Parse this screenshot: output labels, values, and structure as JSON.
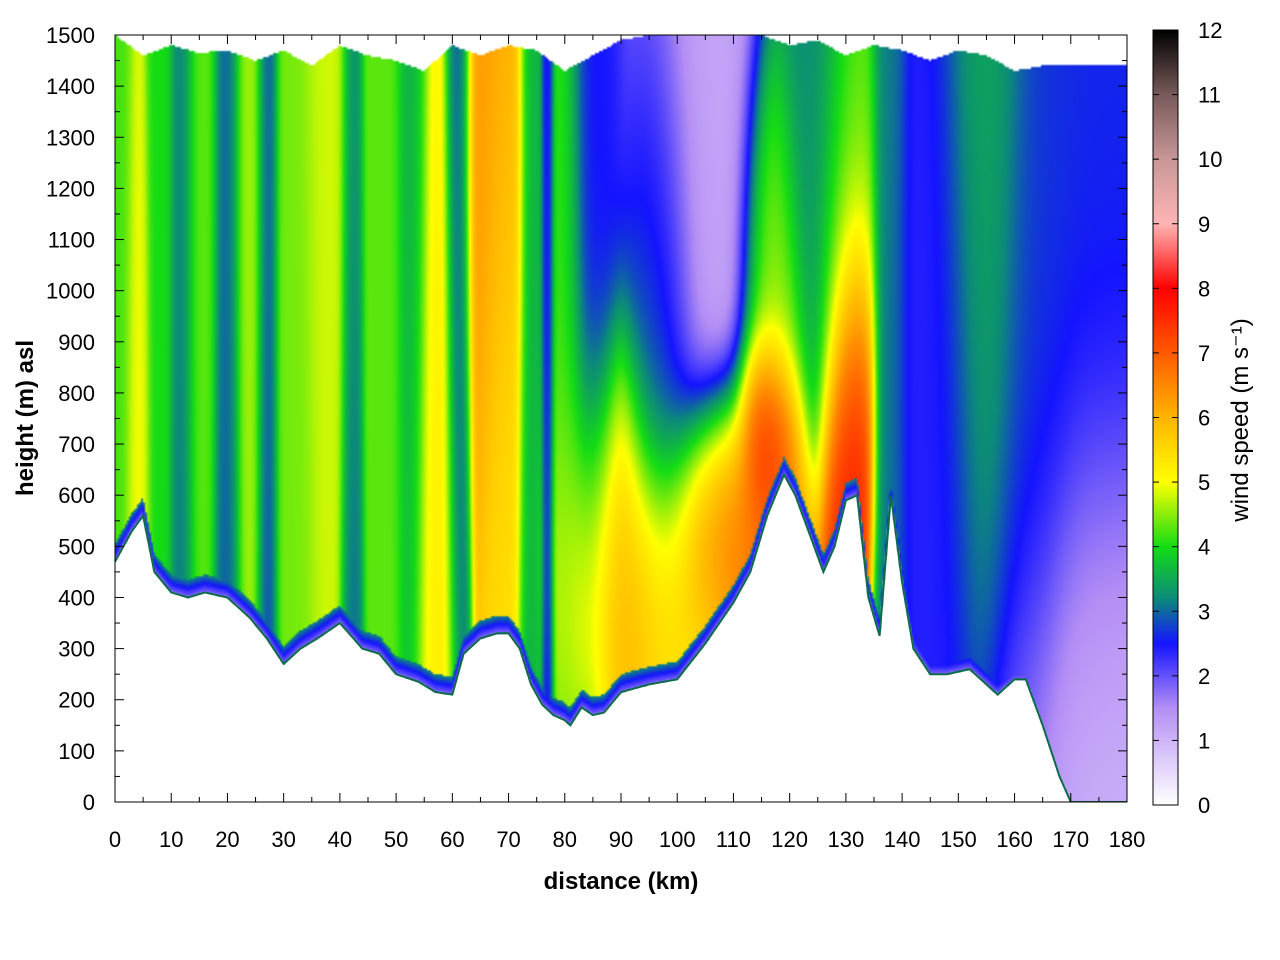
{
  "chart_data": {
    "type": "heatmap",
    "title": "",
    "xlabel": "distance (km)",
    "ylabel": "height (m) asl",
    "colorbar_label": "wind speed (m s⁻¹)",
    "xlim": [
      0,
      180
    ],
    "ylim": [
      0,
      1500
    ],
    "zlim": [
      0,
      12
    ],
    "x_ticks": [
      "0",
      "10",
      "20",
      "30",
      "40",
      "50",
      "60",
      "70",
      "80",
      "90",
      "100",
      "110",
      "120",
      "130",
      "140",
      "150",
      "160",
      "170",
      "180"
    ],
    "y_ticks": [
      "0",
      "100",
      "200",
      "300",
      "400",
      "500",
      "600",
      "700",
      "800",
      "900",
      "1000",
      "1100",
      "1200",
      "1300",
      "1400",
      "1500"
    ],
    "colorbar_ticks": [
      "0",
      "1",
      "2",
      "3",
      "4",
      "5",
      "6",
      "7",
      "8",
      "9",
      "10",
      "11",
      "12"
    ],
    "grid": true,
    "colormap": [
      {
        "value": 0,
        "color": "#ffffff"
      },
      {
        "value": 1.5,
        "color": "#b48ef5"
      },
      {
        "value": 2.5,
        "color": "#1414ff"
      },
      {
        "value": 3.2,
        "color": "#0c8a7a"
      },
      {
        "value": 4,
        "color": "#14dc14"
      },
      {
        "value": 5,
        "color": "#ffff00"
      },
      {
        "value": 6,
        "color": "#ffb400"
      },
      {
        "value": 7,
        "color": "#ff5a00"
      },
      {
        "value": 8,
        "color": "#ff0000"
      },
      {
        "value": 9,
        "color": "#ffb4b4"
      },
      {
        "value": 10,
        "color": "#c89696"
      },
      {
        "value": 11,
        "color": "#785a5a"
      },
      {
        "value": 12,
        "color": "#000000"
      }
    ],
    "terrain": {
      "distance_km": [
        0,
        3,
        5,
        7,
        10,
        13,
        16,
        20,
        24,
        27,
        30,
        33,
        36,
        40,
        44,
        47,
        50,
        54,
        57,
        60,
        62,
        65,
        68,
        70,
        72,
        74,
        76,
        78,
        80,
        81,
        83,
        85,
        87,
        90,
        95,
        100,
        105,
        110,
        113,
        116,
        119,
        121,
        124,
        126,
        128,
        130,
        132,
        134,
        136,
        138,
        140,
        142,
        145,
        148,
        152,
        155,
        157,
        160,
        162,
        165,
        168,
        170,
        180
      ],
      "height_m": [
        470,
        530,
        560,
        450,
        410,
        400,
        410,
        400,
        360,
        320,
        270,
        300,
        320,
        350,
        300,
        290,
        250,
        235,
        215,
        210,
        290,
        320,
        330,
        330,
        300,
        230,
        190,
        170,
        160,
        150,
        185,
        170,
        175,
        215,
        230,
        240,
        310,
        390,
        450,
        560,
        640,
        600,
        510,
        450,
        500,
        590,
        600,
        400,
        325,
        600,
        430,
        300,
        250,
        250,
        260,
        230,
        210,
        240,
        240,
        150,
        50,
        0,
        0
      ]
    },
    "top_height_m": {
      "distance_km": [
        0,
        5,
        10,
        15,
        20,
        25,
        30,
        35,
        40,
        45,
        50,
        55,
        60,
        65,
        70,
        75,
        80,
        85,
        90,
        95,
        100,
        105,
        110,
        115,
        120,
        125,
        130,
        135,
        140,
        145,
        150,
        155,
        160,
        165,
        168,
        170,
        180
      ],
      "height_m": [
        1500,
        1460,
        1480,
        1465,
        1470,
        1450,
        1470,
        1440,
        1480,
        1460,
        1450,
        1430,
        1480,
        1460,
        1480,
        1470,
        1430,
        1460,
        1490,
        1500,
        1500,
        1500,
        1500,
        1500,
        1480,
        1490,
        1460,
        1480,
        1470,
        1450,
        1470,
        1460,
        1430,
        1440,
        1440,
        1440,
        1440
      ]
    },
    "field_features": [
      {
        "x_km": 1,
        "z_m": 1000,
        "sigma_x_km": 1.4,
        "sigma_z_m": 450,
        "speed": 4.2
      },
      {
        "x_km": 4,
        "z_m": 800,
        "sigma_x_km": 1.2,
        "sigma_z_m": 400,
        "speed": 5.0
      },
      {
        "x_km": 8,
        "z_m": 1000,
        "sigma_x_km": 1.4,
        "sigma_z_m": 600,
        "speed": 4.0
      },
      {
        "x_km": 12,
        "z_m": 900,
        "sigma_x_km": 1.2,
        "sigma_z_m": 600,
        "speed": 3.0
      },
      {
        "x_km": 15,
        "z_m": 1000,
        "sigma_x_km": 1.8,
        "sigma_z_m": 500,
        "speed": 4.3
      },
      {
        "x_km": 20,
        "z_m": 900,
        "sigma_x_km": 1.3,
        "sigma_z_m": 600,
        "speed": 2.9
      },
      {
        "x_km": 24,
        "z_m": 1000,
        "sigma_x_km": 1.8,
        "sigma_z_m": 500,
        "speed": 4.6
      },
      {
        "x_km": 27,
        "z_m": 900,
        "sigma_x_km": 1.0,
        "sigma_z_m": 600,
        "speed": 2.6
      },
      {
        "x_km": 32,
        "z_m": 900,
        "sigma_x_km": 2.2,
        "sigma_z_m": 500,
        "speed": 4.4
      },
      {
        "x_km": 38,
        "z_m": 1050,
        "sigma_x_km": 2.5,
        "sigma_z_m": 500,
        "speed": 4.8
      },
      {
        "x_km": 42,
        "z_m": 800,
        "sigma_x_km": 1.0,
        "sigma_z_m": 600,
        "speed": 2.9
      },
      {
        "x_km": 48,
        "z_m": 900,
        "sigma_x_km": 1.8,
        "sigma_z_m": 500,
        "speed": 4.3
      },
      {
        "x_km": 53,
        "z_m": 1000,
        "sigma_x_km": 1.5,
        "sigma_z_m": 500,
        "speed": 3.5
      },
      {
        "x_km": 57,
        "z_m": 700,
        "sigma_x_km": 2.2,
        "sigma_z_m": 500,
        "speed": 5.2
      },
      {
        "x_km": 61,
        "z_m": 1100,
        "sigma_x_km": 1.2,
        "sigma_z_m": 500,
        "speed": 2.6
      },
      {
        "x_km": 67,
        "z_m": 1200,
        "sigma_x_km": 2.8,
        "sigma_z_m": 350,
        "speed": 6.3
      },
      {
        "x_km": 69,
        "z_m": 800,
        "sigma_x_km": 2.0,
        "sigma_z_m": 400,
        "speed": 5.4
      },
      {
        "x_km": 74,
        "z_m": 800,
        "sigma_x_km": 1.2,
        "sigma_z_m": 600,
        "speed": 3.5
      },
      {
        "x_km": 77,
        "z_m": 800,
        "sigma_x_km": 0.6,
        "sigma_z_m": 700,
        "speed": 2.0
      },
      {
        "x_km": 80,
        "z_m": 900,
        "sigma_x_km": 2.0,
        "sigma_z_m": 500,
        "speed": 4.2
      },
      {
        "x_km": 85,
        "z_m": 1100,
        "sigma_x_km": 2.5,
        "sigma_z_m": 500,
        "speed": 2.5
      },
      {
        "x_km": 88,
        "z_m": 500,
        "sigma_x_km": 5.5,
        "sigma_z_m": 220,
        "speed": 5.7
      },
      {
        "x_km": 95,
        "z_m": 380,
        "sigma_x_km": 6.0,
        "sigma_z_m": 150,
        "speed": 6.2
      },
      {
        "x_km": 97,
        "z_m": 900,
        "sigma_x_km": 3.5,
        "sigma_z_m": 350,
        "speed": 3.1
      },
      {
        "x_km": 104,
        "z_m": 1200,
        "sigma_x_km": 6.0,
        "sigma_z_m": 400,
        "speed": 1.2
      },
      {
        "x_km": 108,
        "z_m": 560,
        "sigma_x_km": 6.0,
        "sigma_z_m": 140,
        "speed": 7.2
      },
      {
        "x_km": 116,
        "z_m": 720,
        "sigma_x_km": 2.5,
        "sigma_z_m": 110,
        "speed": 8.5
      },
      {
        "x_km": 117,
        "z_m": 1000,
        "sigma_x_km": 3.0,
        "sigma_z_m": 250,
        "speed": 4.8
      },
      {
        "x_km": 124,
        "z_m": 1300,
        "sigma_x_km": 3.5,
        "sigma_z_m": 250,
        "speed": 3.2
      },
      {
        "x_km": 131,
        "z_m": 760,
        "sigma_x_km": 2.2,
        "sigma_z_m": 220,
        "speed": 7.9
      },
      {
        "x_km": 130,
        "z_m": 1150,
        "sigma_x_km": 3.0,
        "sigma_z_m": 250,
        "speed": 4.4
      },
      {
        "x_km": 138,
        "z_m": 900,
        "sigma_x_km": 1.5,
        "sigma_z_m": 500,
        "speed": 3.2
      },
      {
        "x_km": 145,
        "z_m": 850,
        "sigma_x_km": 4.5,
        "sigma_z_m": 400,
        "speed": 2.4
      },
      {
        "x_km": 155,
        "z_m": 1100,
        "sigma_x_km": 4.0,
        "sigma_z_m": 400,
        "speed": 3.5
      },
      {
        "x_km": 164,
        "z_m": 900,
        "sigma_x_km": 4.0,
        "sigma_z_m": 400,
        "speed": 2.7
      },
      {
        "x_km": 175,
        "z_m": 800,
        "sigma_x_km": 8.0,
        "sigma_z_m": 400,
        "speed": 2.6
      },
      {
        "x_km": 176,
        "z_m": 300,
        "sigma_x_km": 8.0,
        "sigma_z_m": 300,
        "speed": 0.8
      }
    ]
  }
}
